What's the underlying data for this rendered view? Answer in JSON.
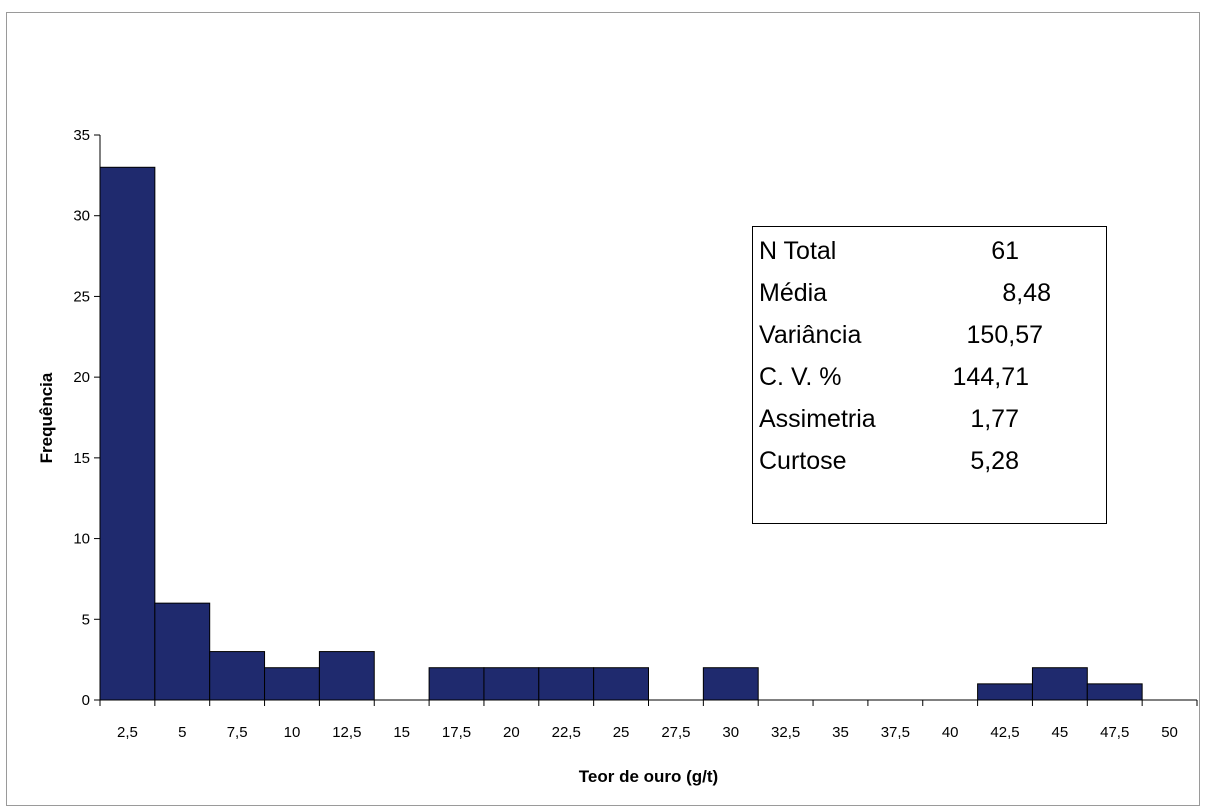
{
  "chart_data": {
    "type": "bar",
    "xlabel": "Teor de ouro (g/t)",
    "ylabel": "Frequência",
    "categories": [
      "2,5",
      "5",
      "7,5",
      "10",
      "12,5",
      "15",
      "17,5",
      "20",
      "22,5",
      "25",
      "27,5",
      "30",
      "32,5",
      "35",
      "37,5",
      "40",
      "42,5",
      "45",
      "47,5",
      "50"
    ],
    "values": [
      33,
      6,
      3,
      2,
      3,
      0,
      2,
      2,
      2,
      2,
      0,
      2,
      0,
      0,
      0,
      0,
      1,
      2,
      1,
      0
    ],
    "ylim": [
      0,
      35
    ],
    "yticks": [
      "0",
      "5",
      "10",
      "15",
      "20",
      "25",
      "30",
      "35"
    ],
    "bar_color": "#1f2a6e",
    "grid": false,
    "legend": "none"
  },
  "stats": [
    {
      "name": "N Total",
      "value": "61"
    },
    {
      "name": "Média",
      "value": "8,48"
    },
    {
      "name": "Variância",
      "value": "150,57"
    },
    {
      "name": "C. V. %",
      "value": "144,71"
    },
    {
      "name": "Assimetria",
      "value": "1,77"
    },
    {
      "name": "Curtose",
      "value": "5,28"
    }
  ]
}
